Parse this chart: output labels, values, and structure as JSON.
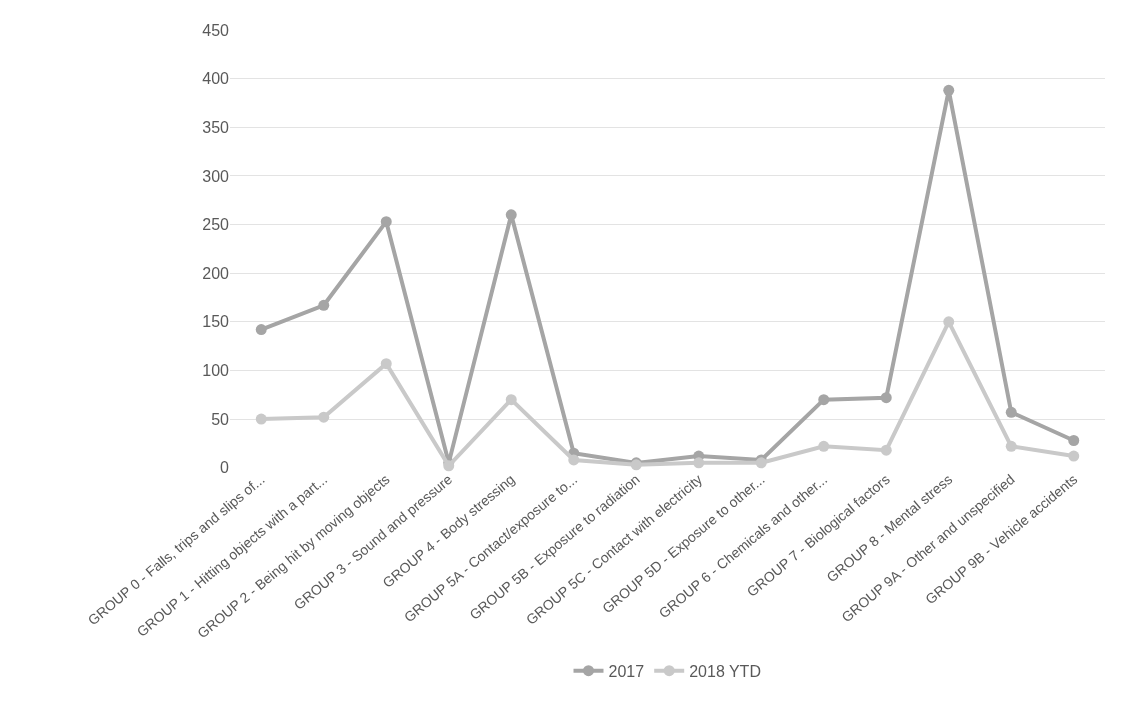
{
  "chart_data": {
    "type": "line",
    "categories": [
      "GROUP 0 - Falls, trips and slips of...",
      "GROUP 1 - Hitting objects with a part...",
      "GROUP 2 - Being hit by moving objects",
      "GROUP 3 - Sound and pressure",
      "GROUP 4 - Body stressing",
      "GROUP 5A - Contact/exposure to...",
      "GROUP 5B - Exposure to radiation",
      "GROUP 5C - Contact with electricity",
      "GROUP 5D - Exposure to other...",
      "GROUP 6 - Chemicals and other...",
      "GROUP 7 - Biological factors",
      "GROUP 8 - Mental stress",
      "GROUP 9A - Other and unspecified",
      "GROUP 9B - Vehicle accidents"
    ],
    "series": [
      {
        "name": "2017",
        "color": "#a5a5a5",
        "values": [
          142,
          167,
          253,
          5,
          260,
          15,
          5,
          12,
          8,
          70,
          72,
          388,
          57,
          28
        ]
      },
      {
        "name": "2018 YTD",
        "color": "#c9c9c9",
        "values": [
          50,
          52,
          107,
          2,
          70,
          8,
          3,
          5,
          5,
          22,
          18,
          150,
          22,
          12
        ]
      }
    ],
    "ylim": [
      0,
      450
    ],
    "yticks": [
      0,
      50,
      100,
      150,
      200,
      250,
      300,
      350,
      400,
      450
    ],
    "grid": "y",
    "legend": "bottom",
    "marker": "circle",
    "line_style": "solid"
  }
}
